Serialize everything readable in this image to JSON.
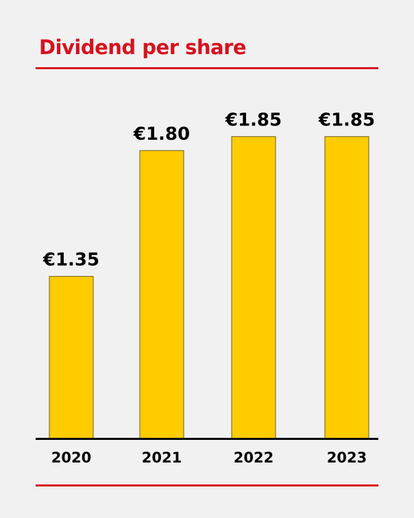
{
  "chart_data": {
    "type": "bar",
    "title": "Dividend per share",
    "categories": [
      "2020",
      "2021",
      "2022",
      "2023"
    ],
    "values": [
      1.35,
      1.8,
      1.85,
      1.85
    ],
    "data_labels": [
      "€1.35",
      "€1.80",
      "€1.85",
      "€1.85"
    ],
    "xlabel": "",
    "ylabel": "",
    "grid": false,
    "colors": {
      "bar": "#ffcc00",
      "bar_outline": "#6b5a1a",
      "title": "#d8111f",
      "rule": "#d8111f",
      "axis": "#000000",
      "background": "#f1f1f1"
    }
  }
}
